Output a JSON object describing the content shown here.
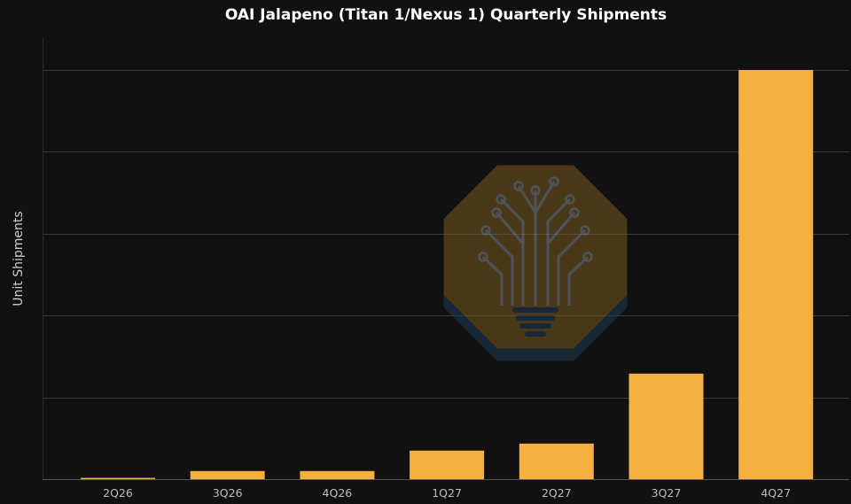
{
  "chart_data": {
    "type": "bar",
    "title": "OAI Jalapeno (Titan 1/Nexus 1) Quarterly Shipments",
    "xlabel": "",
    "ylabel": "Unit Shipments",
    "categories": [
      "2Q26",
      "3Q26",
      "4Q26",
      "1Q27",
      "2Q27",
      "3Q27",
      "4Q27"
    ],
    "values": [
      0.2,
      2.0,
      2.0,
      7.0,
      8.7,
      25.8,
      100
    ],
    "ylim": [
      0,
      100
    ],
    "y_gridlines": [
      0,
      20,
      40,
      60,
      80,
      100
    ],
    "y_tick_labels_shown": false,
    "grid": true,
    "legend": "none",
    "colors": {
      "background": "#111111",
      "bar": "#f4b041",
      "grid": "#3a3a3a",
      "axis": "#555555",
      "title": "#ffffff",
      "text": "#bdbdbd"
    }
  },
  "watermark": {
    "icon": "lightbulb-circuit-tree-logo",
    "colors": {
      "octagon": "#7a5a1e",
      "shadow": "#1d3b55",
      "lines": "#7d8a94"
    }
  }
}
